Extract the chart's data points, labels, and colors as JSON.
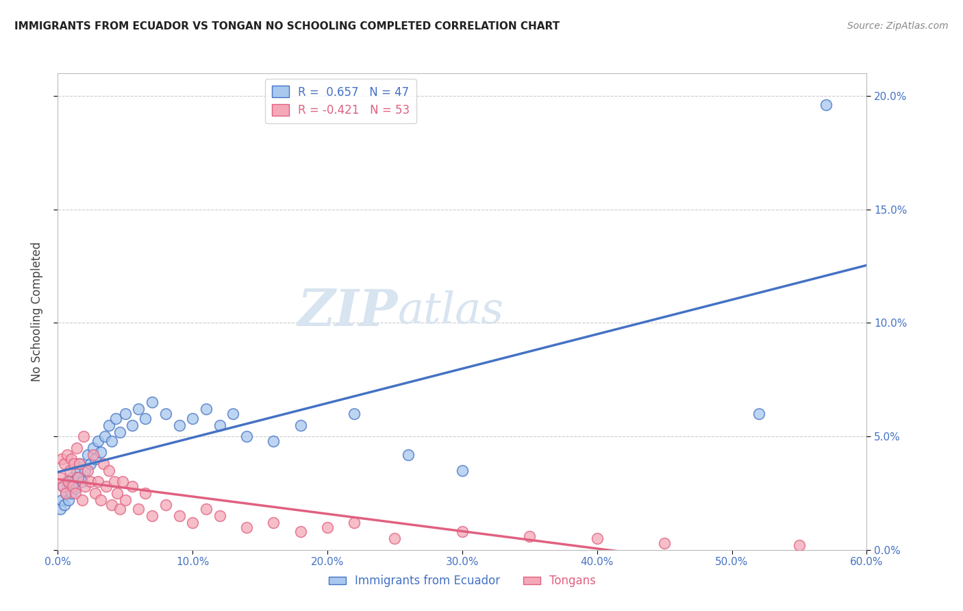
{
  "title": "IMMIGRANTS FROM ECUADOR VS TONGAN NO SCHOOLING COMPLETED CORRELATION CHART",
  "source": "Source: ZipAtlas.com",
  "ylabel_label": "No Schooling Completed",
  "legend_ecuador": "Immigrants from Ecuador",
  "legend_tongan": "Tongans",
  "r_ecuador": 0.657,
  "n_ecuador": 47,
  "r_tongan": -0.421,
  "n_tongan": 53,
  "ecuador_color": "#A8C8EE",
  "tongan_color": "#F4A8B8",
  "line_ecuador_color": "#4472C4",
  "line_tongan_color": "#E06080",
  "watermark_zip": "ZIP",
  "watermark_atlas": "atlas",
  "xlim": [
    0.0,
    0.6
  ],
  "ylim": [
    0.0,
    0.21
  ],
  "xticks": [
    0.0,
    0.1,
    0.2,
    0.3,
    0.4,
    0.5,
    0.6
  ],
  "yticks": [
    0.0,
    0.05,
    0.1,
    0.15,
    0.2
  ],
  "ecuador_scatter_x": [
    0.002,
    0.003,
    0.004,
    0.005,
    0.006,
    0.007,
    0.008,
    0.009,
    0.01,
    0.011,
    0.012,
    0.013,
    0.014,
    0.015,
    0.016,
    0.018,
    0.02,
    0.022,
    0.024,
    0.026,
    0.028,
    0.03,
    0.032,
    0.035,
    0.038,
    0.04,
    0.043,
    0.046,
    0.05,
    0.055,
    0.06,
    0.065,
    0.07,
    0.08,
    0.09,
    0.1,
    0.11,
    0.12,
    0.13,
    0.14,
    0.16,
    0.18,
    0.22,
    0.26,
    0.3,
    0.52,
    0.57
  ],
  "ecuador_scatter_y": [
    0.018,
    0.022,
    0.028,
    0.02,
    0.025,
    0.03,
    0.022,
    0.028,
    0.025,
    0.032,
    0.03,
    0.027,
    0.035,
    0.032,
    0.038,
    0.03,
    0.035,
    0.042,
    0.038,
    0.045,
    0.04,
    0.048,
    0.043,
    0.05,
    0.055,
    0.048,
    0.058,
    0.052,
    0.06,
    0.055,
    0.062,
    0.058,
    0.065,
    0.06,
    0.055,
    0.058,
    0.062,
    0.055,
    0.06,
    0.05,
    0.048,
    0.055,
    0.06,
    0.042,
    0.035,
    0.06,
    0.196
  ],
  "tongan_scatter_x": [
    0.002,
    0.003,
    0.004,
    0.005,
    0.006,
    0.007,
    0.008,
    0.009,
    0.01,
    0.011,
    0.012,
    0.013,
    0.014,
    0.015,
    0.016,
    0.018,
    0.019,
    0.02,
    0.022,
    0.024,
    0.026,
    0.028,
    0.03,
    0.032,
    0.034,
    0.036,
    0.038,
    0.04,
    0.042,
    0.044,
    0.046,
    0.048,
    0.05,
    0.055,
    0.06,
    0.065,
    0.07,
    0.08,
    0.09,
    0.1,
    0.11,
    0.12,
    0.14,
    0.16,
    0.18,
    0.2,
    0.22,
    0.25,
    0.3,
    0.35,
    0.4,
    0.45,
    0.55
  ],
  "tongan_scatter_y": [
    0.032,
    0.04,
    0.028,
    0.038,
    0.025,
    0.042,
    0.03,
    0.035,
    0.04,
    0.028,
    0.038,
    0.025,
    0.045,
    0.032,
    0.038,
    0.022,
    0.05,
    0.028,
    0.035,
    0.03,
    0.042,
    0.025,
    0.03,
    0.022,
    0.038,
    0.028,
    0.035,
    0.02,
    0.03,
    0.025,
    0.018,
    0.03,
    0.022,
    0.028,
    0.018,
    0.025,
    0.015,
    0.02,
    0.015,
    0.012,
    0.018,
    0.015,
    0.01,
    0.012,
    0.008,
    0.01,
    0.012,
    0.005,
    0.008,
    0.006,
    0.005,
    0.003,
    0.002
  ]
}
